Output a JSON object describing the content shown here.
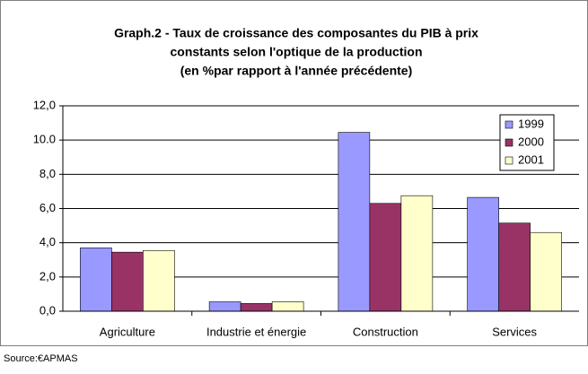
{
  "chart_data": {
    "type": "bar",
    "title": [
      "Graph.2 - Taux de croissance des composantes du PIB à prix",
      "constants selon l'optique de la production",
      "(en %par rapport à l'année précédente)"
    ],
    "categories": [
      "Agriculture",
      "Industrie et énergie",
      "Construction",
      "Services"
    ],
    "series": [
      {
        "name": "1999",
        "color": "#9999ff",
        "values": [
          3.7,
          0.55,
          10.45,
          6.65
        ]
      },
      {
        "name": "2000",
        "color": "#993366",
        "values": [
          3.45,
          0.45,
          6.3,
          5.15
        ]
      },
      {
        "name": "2001",
        "color": "#ffffcc",
        "values": [
          3.55,
          0.55,
          6.75,
          4.6
        ]
      }
    ],
    "ylim": [
      0,
      12
    ],
    "yticks": [
      {
        "value": 0,
        "label": "0,0"
      },
      {
        "value": 2,
        "label": "2,0"
      },
      {
        "value": 4,
        "label": "4,0"
      },
      {
        "value": 6,
        "label": "6,0"
      },
      {
        "value": 8,
        "label": "8,0"
      },
      {
        "value": 10,
        "label": "10.0"
      },
      {
        "value": 12,
        "label": "12,0"
      }
    ],
    "grid": true,
    "legend": "upper right",
    "source": "Source:€APMAS"
  }
}
